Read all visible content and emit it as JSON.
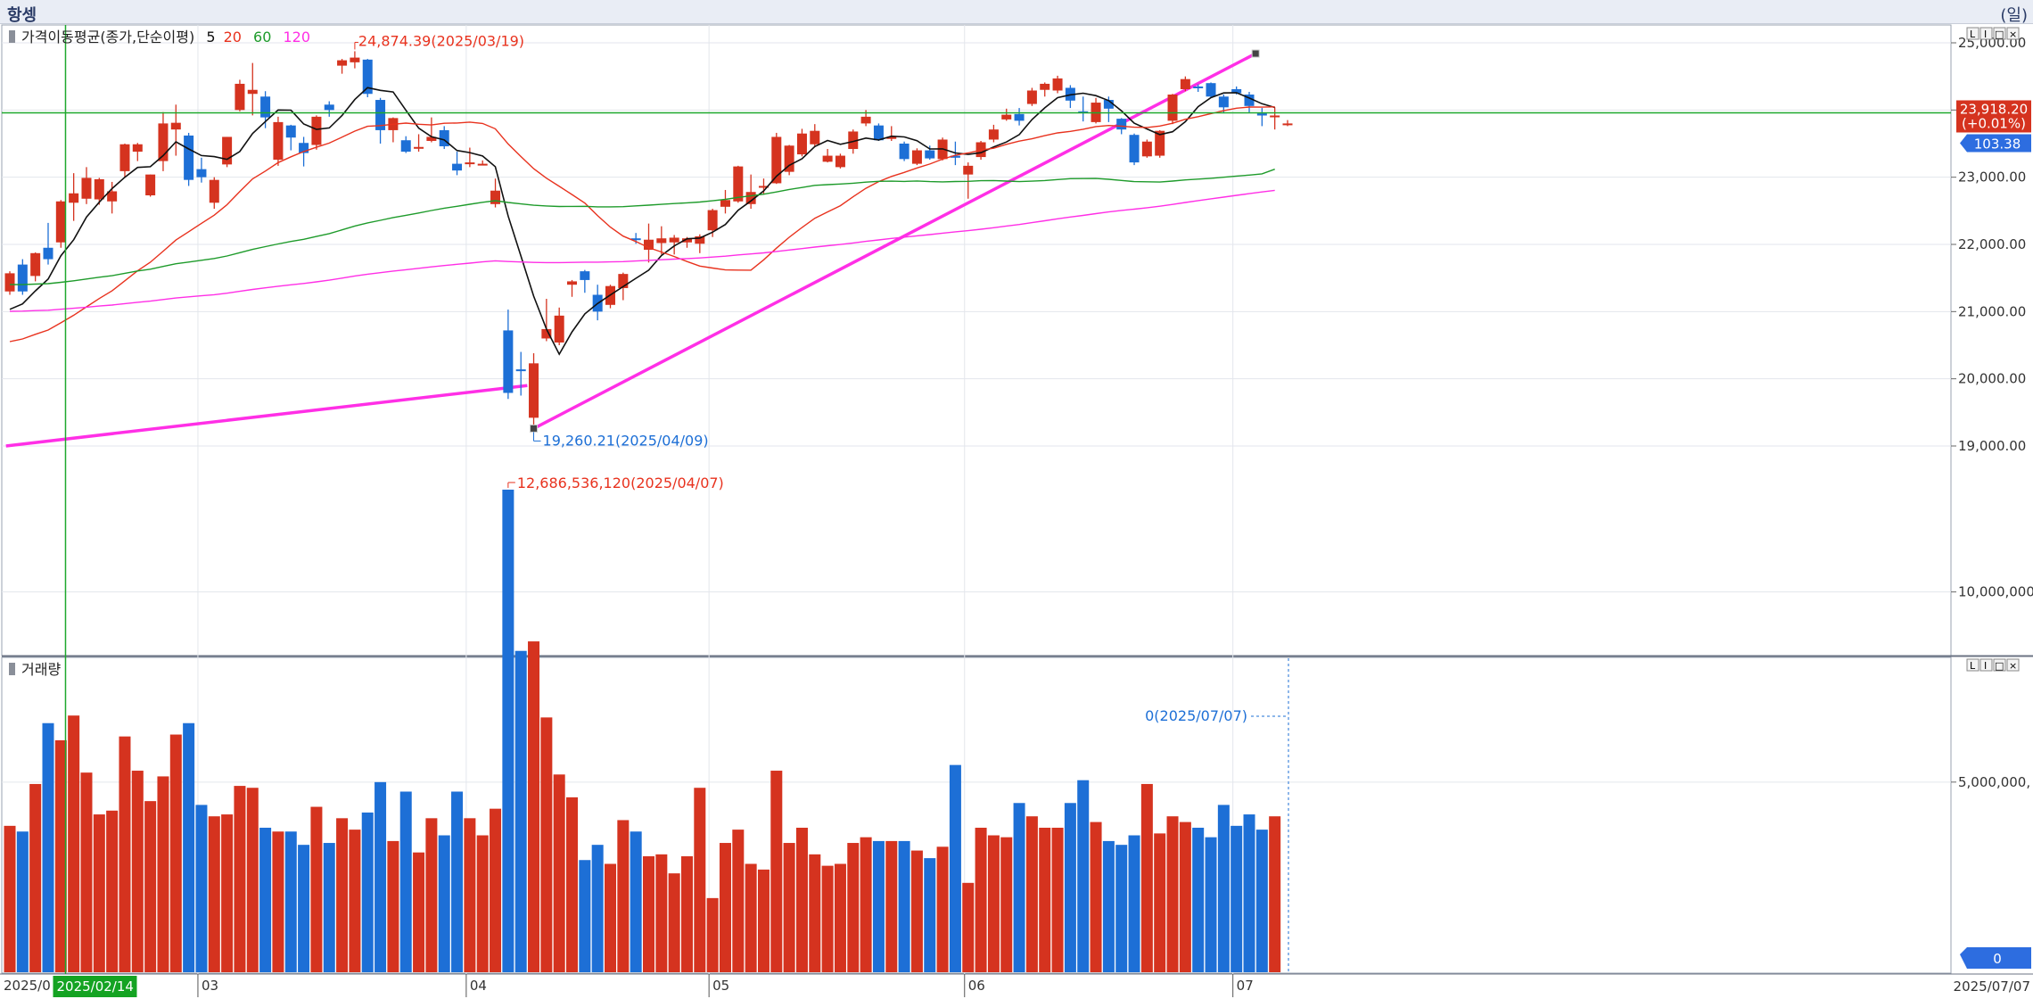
{
  "header": {
    "title": "항셍",
    "unit": "(일)"
  },
  "price_panel": {
    "legend_label": "가격이동평균(종가,단순이평)",
    "ma_periods": [
      {
        "label": "5",
        "color": "#111111"
      },
      {
        "label": "20",
        "color": "#e8321e"
      },
      {
        "label": "60",
        "color": "#1e9b2b"
      },
      {
        "label": "120",
        "color": "#ff2fe6"
      }
    ],
    "current_price_label": "23,918.20",
    "current_change_label": "(+0.01%)",
    "change_badge_label": "103.38",
    "high_annotation": "24,874.39(2025/03/19)",
    "low_annotation": "19,260.21(2025/04/09)",
    "panel_buttons": [
      "L",
      "I",
      "□",
      "×"
    ]
  },
  "volume_panel": {
    "legend_label": "거래량",
    "peak_annotation": "12,686,536,120(2025/04/07)",
    "last_annotation": "0(2025/07/07)",
    "last_badge_label": "0",
    "panel_buttons": [
      "L",
      "I",
      "□",
      "×"
    ]
  },
  "x_axis": {
    "start_label": "2025/0",
    "crosshair_label": "2025/02/14",
    "end_label": "2025/07/07",
    "month_ticks": [
      {
        "label": "03",
        "index": 15
      },
      {
        "label": "04",
        "index": 36
      },
      {
        "label": "05",
        "index": 55
      },
      {
        "label": "06",
        "index": 75
      },
      {
        "label": "07",
        "index": 96
      }
    ]
  },
  "chart_data": {
    "type": "candlestick",
    "price_axis": {
      "min": 19000,
      "max": 25000,
      "ticks": [
        "19,000.00",
        "20,000.00",
        "21,000.00",
        "22,000.00",
        "23,000.00",
        "24,000.00",
        "25,000.00"
      ],
      "tick_values": [
        19000,
        20000,
        21000,
        22000,
        23000,
        24000,
        25000
      ]
    },
    "volume_axis": {
      "min": 0,
      "max": 12900000000,
      "ticks": [
        "5,000,000,",
        "10,000,000,"
      ],
      "tick_values": [
        5000000000,
        10000000000
      ]
    },
    "candles": [
      {
        "o": 21300,
        "c": 21570,
        "h": 21600,
        "l": 21250,
        "v": 3.85
      },
      {
        "o": 21700,
        "c": 21300,
        "h": 21780,
        "l": 21250,
        "v": 3.7
      },
      {
        "o": 21530,
        "c": 21870,
        "h": 21880,
        "l": 21450,
        "v": 4.95
      },
      {
        "o": 21950,
        "c": 21780,
        "h": 22320,
        "l": 21700,
        "v": 6.55
      },
      {
        "o": 22030,
        "c": 22640,
        "h": 22660,
        "l": 21950,
        "v": 6.1
      },
      {
        "o": 22620,
        "c": 22760,
        "h": 23060,
        "l": 22350,
        "v": 6.75
      },
      {
        "o": 22680,
        "c": 22990,
        "h": 23150,
        "l": 22600,
        "v": 5.25
      },
      {
        "o": 22670,
        "c": 22970,
        "h": 22990,
        "l": 22590,
        "v": 4.15
      },
      {
        "o": 22640,
        "c": 22790,
        "h": 22930,
        "l": 22460,
        "v": 4.25
      },
      {
        "o": 23090,
        "c": 23490,
        "h": 23500,
        "l": 22990,
        "v": 6.2
      },
      {
        "o": 23380,
        "c": 23490,
        "h": 23510,
        "l": 23240,
        "v": 5.3
      },
      {
        "o": 22730,
        "c": 23040,
        "h": 23040,
        "l": 22710,
        "v": 4.5
      },
      {
        "o": 23240,
        "c": 23800,
        "h": 23970,
        "l": 23090,
        "v": 5.15
      },
      {
        "o": 23710,
        "c": 23810,
        "h": 24080,
        "l": 23320,
        "v": 6.25
      },
      {
        "o": 23620,
        "c": 22960,
        "h": 23660,
        "l": 22870,
        "v": 6.55
      },
      {
        "o": 23120,
        "c": 23000,
        "h": 23290,
        "l": 22920,
        "v": 4.4
      },
      {
        "o": 22620,
        "c": 22960,
        "h": 23000,
        "l": 22530,
        "v": 4.1
      },
      {
        "o": 23190,
        "c": 23600,
        "h": 23600,
        "l": 23150,
        "v": 4.15
      },
      {
        "o": 24000,
        "c": 24390,
        "h": 24450,
        "l": 23980,
        "v": 4.9
      },
      {
        "o": 24240,
        "c": 24300,
        "h": 24700,
        "l": 23920,
        "v": 4.85
      },
      {
        "o": 24200,
        "c": 23890,
        "h": 24280,
        "l": 23730,
        "v": 3.8
      },
      {
        "o": 23260,
        "c": 23820,
        "h": 23900,
        "l": 23170,
        "v": 3.7
      },
      {
        "o": 23770,
        "c": 23590,
        "h": 23780,
        "l": 23400,
        "v": 3.7
      },
      {
        "o": 23510,
        "c": 23360,
        "h": 23600,
        "l": 23160,
        "v": 3.35
      },
      {
        "o": 23480,
        "c": 23900,
        "h": 23920,
        "l": 23410,
        "v": 4.35
      },
      {
        "o": 24080,
        "c": 24000,
        "h": 24130,
        "l": 23900,
        "v": 3.4
      },
      {
        "o": 24660,
        "c": 24740,
        "h": 24760,
        "l": 24540,
        "v": 4.05
      },
      {
        "o": 24710,
        "c": 24780,
        "h": 24874.39,
        "l": 24620,
        "v": 3.75
      },
      {
        "o": 24750,
        "c": 24240,
        "h": 24760,
        "l": 24190,
        "v": 4.2
      },
      {
        "o": 24150,
        "c": 23700,
        "h": 24180,
        "l": 23500,
        "v": 5.0
      },
      {
        "o": 23700,
        "c": 23880,
        "h": 23890,
        "l": 23520,
        "v": 3.45
      },
      {
        "o": 23550,
        "c": 23380,
        "h": 23610,
        "l": 23360,
        "v": 4.75
      },
      {
        "o": 23440,
        "c": 23450,
        "h": 23640,
        "l": 23380,
        "v": 3.15
      },
      {
        "o": 23540,
        "c": 23600,
        "h": 23890,
        "l": 23520,
        "v": 4.05
      },
      {
        "o": 23700,
        "c": 23460,
        "h": 23760,
        "l": 23420,
        "v": 3.6
      },
      {
        "o": 23200,
        "c": 23100,
        "h": 23380,
        "l": 23030,
        "v": 4.75
      },
      {
        "o": 23210,
        "c": 23220,
        "h": 23440,
        "l": 23150,
        "v": 4.05
      },
      {
        "o": 23190,
        "c": 23200,
        "h": 23250,
        "l": 23180,
        "v": 3.6
      },
      {
        "o": 22600,
        "c": 22800,
        "h": 22980,
        "l": 22550,
        "v": 4.3
      },
      {
        "o": 20720,
        "c": 19790,
        "h": 21030,
        "l": 19700,
        "v": 12.69
      },
      {
        "o": 20140,
        "c": 20130,
        "h": 20400,
        "l": 19750,
        "v": 8.45
      },
      {
        "o": 19420,
        "c": 20230,
        "h": 20380,
        "l": 19260.21,
        "v": 8.7
      },
      {
        "o": 20600,
        "c": 20740,
        "h": 21190,
        "l": 20560,
        "v": 6.7
      },
      {
        "o": 20540,
        "c": 20940,
        "h": 21060,
        "l": 20500,
        "v": 5.2
      },
      {
        "o": 21400,
        "c": 21450,
        "h": 21470,
        "l": 21220,
        "v": 4.6
      },
      {
        "o": 21600,
        "c": 21470,
        "h": 21620,
        "l": 21280,
        "v": 2.95
      },
      {
        "o": 21250,
        "c": 21000,
        "h": 21400,
        "l": 20870,
        "v": 3.35
      },
      {
        "o": 21100,
        "c": 21380,
        "h": 21400,
        "l": 21050,
        "v": 2.85
      },
      {
        "o": 21350,
        "c": 21560,
        "h": 21580,
        "l": 21170,
        "v": 4.0
      },
      {
        "o": 22090,
        "c": 22070,
        "h": 22170,
        "l": 22010,
        "v": 3.7
      },
      {
        "o": 21920,
        "c": 22070,
        "h": 22310,
        "l": 21730,
        "v": 3.05
      },
      {
        "o": 22020,
        "c": 22090,
        "h": 22270,
        "l": 21850,
        "v": 3.1
      },
      {
        "o": 22030,
        "c": 22100,
        "h": 22140,
        "l": 21850,
        "v": 2.6
      },
      {
        "o": 22030,
        "c": 22090,
        "h": 22110,
        "l": 21950,
        "v": 3.05
      },
      {
        "o": 22010,
        "c": 22120,
        "h": 22150,
        "l": 21870,
        "v": 4.85
      },
      {
        "o": 22210,
        "c": 22510,
        "h": 22530,
        "l": 22110,
        "v": 1.95
      },
      {
        "o": 22560,
        "c": 22660,
        "h": 22810,
        "l": 22460,
        "v": 3.4
      },
      {
        "o": 22640,
        "c": 23160,
        "h": 23170,
        "l": 22620,
        "v": 3.75
      },
      {
        "o": 22600,
        "c": 22780,
        "h": 23040,
        "l": 22530,
        "v": 2.85
      },
      {
        "o": 22850,
        "c": 22870,
        "h": 22980,
        "l": 22740,
        "v": 2.7
      },
      {
        "o": 22910,
        "c": 23600,
        "h": 23660,
        "l": 22900,
        "v": 5.3
      },
      {
        "o": 23080,
        "c": 23470,
        "h": 23480,
        "l": 23030,
        "v": 3.4
      },
      {
        "o": 23340,
        "c": 23650,
        "h": 23720,
        "l": 23310,
        "v": 3.8
      },
      {
        "o": 23490,
        "c": 23690,
        "h": 23790,
        "l": 23450,
        "v": 3.1
      },
      {
        "o": 23230,
        "c": 23320,
        "h": 23420,
        "l": 23220,
        "v": 2.8
      },
      {
        "o": 23150,
        "c": 23320,
        "h": 23350,
        "l": 23130,
        "v": 2.85
      },
      {
        "o": 23420,
        "c": 23680,
        "h": 23710,
        "l": 23350,
        "v": 3.4
      },
      {
        "o": 23800,
        "c": 23900,
        "h": 24000,
        "l": 23760,
        "v": 3.55
      },
      {
        "o": 23770,
        "c": 23550,
        "h": 23800,
        "l": 23540,
        "v": 3.45
      },
      {
        "o": 23570,
        "c": 23600,
        "h": 23760,
        "l": 23540,
        "v": 3.45
      },
      {
        "o": 23500,
        "c": 23270,
        "h": 23530,
        "l": 23240,
        "v": 3.45
      },
      {
        "o": 23200,
        "c": 23400,
        "h": 23430,
        "l": 23180,
        "v": 3.2
      },
      {
        "o": 23400,
        "c": 23280,
        "h": 23470,
        "l": 23260,
        "v": 3.0
      },
      {
        "o": 23270,
        "c": 23560,
        "h": 23590,
        "l": 23250,
        "v": 3.3
      },
      {
        "o": 23320,
        "c": 23290,
        "h": 23530,
        "l": 23180,
        "v": 5.45
      },
      {
        "o": 23040,
        "c": 23170,
        "h": 23220,
        "l": 22680,
        "v": 2.35
      },
      {
        "o": 23300,
        "c": 23520,
        "h": 23540,
        "l": 23260,
        "v": 3.8
      },
      {
        "o": 23560,
        "c": 23710,
        "h": 23780,
        "l": 23520,
        "v": 3.6
      },
      {
        "o": 23860,
        "c": 23930,
        "h": 24020,
        "l": 23840,
        "v": 3.55
      },
      {
        "o": 23940,
        "c": 23840,
        "h": 24030,
        "l": 23770,
        "v": 4.45
      },
      {
        "o": 24090,
        "c": 24290,
        "h": 24330,
        "l": 24060,
        "v": 4.1
      },
      {
        "o": 24300,
        "c": 24390,
        "h": 24410,
        "l": 24200,
        "v": 3.8
      },
      {
        "o": 24290,
        "c": 24470,
        "h": 24510,
        "l": 24250,
        "v": 3.8
      },
      {
        "o": 24330,
        "c": 24140,
        "h": 24370,
        "l": 24030,
        "v": 4.45
      },
      {
        "o": 23980,
        "c": 23960,
        "h": 24200,
        "l": 23830,
        "v": 5.05
      },
      {
        "o": 23820,
        "c": 24110,
        "h": 24180,
        "l": 23800,
        "v": 3.95
      },
      {
        "o": 24150,
        "c": 24020,
        "h": 24200,
        "l": 23820,
        "v": 3.45
      },
      {
        "o": 23870,
        "c": 23710,
        "h": 23880,
        "l": 23640,
        "v": 3.35
      },
      {
        "o": 23630,
        "c": 23220,
        "h": 23650,
        "l": 23180,
        "v": 3.6
      },
      {
        "o": 23310,
        "c": 23530,
        "h": 23560,
        "l": 23290,
        "v": 4.95
      },
      {
        "o": 23320,
        "c": 23690,
        "h": 23700,
        "l": 23290,
        "v": 3.65
      },
      {
        "o": 23840,
        "c": 24230,
        "h": 24240,
        "l": 23790,
        "v": 4.1
      },
      {
        "o": 24310,
        "c": 24460,
        "h": 24500,
        "l": 24280,
        "v": 3.95
      },
      {
        "o": 24350,
        "c": 24340,
        "h": 24380,
        "l": 24270,
        "v": 3.8
      },
      {
        "o": 24400,
        "c": 24200,
        "h": 24410,
        "l": 24190,
        "v": 3.55
      },
      {
        "o": 24200,
        "c": 24040,
        "h": 24230,
        "l": 23950,
        "v": 4.4
      },
      {
        "o": 24310,
        "c": 24250,
        "h": 24350,
        "l": 24230,
        "v": 3.85
      },
      {
        "o": 24230,
        "c": 24060,
        "h": 24270,
        "l": 23960,
        "v": 4.15
      },
      {
        "o": 23950,
        "c": 23918.2,
        "h": 24030,
        "l": 23760,
        "v": 3.75
      },
      {
        "o": 23918.2,
        "c": 23918.2,
        "h": 24040,
        "l": 23710,
        "v": 4.1
      },
      {
        "o": 23800,
        "c": 23800,
        "h": 23850,
        "l": 23760,
        "v": 0
      }
    ],
    "volume_unit_note": "v values in billions",
    "trendlines": [
      {
        "from": {
          "index": -0.3,
          "price": 19000
        },
        "to": {
          "index": 40.5,
          "price": 19900
        }
      },
      {
        "from": {
          "index": 41,
          "price": 19260.21
        },
        "to": {
          "index": 97.5,
          "price": 24840
        }
      }
    ],
    "horizontal_line_price": 23918.2,
    "crosshair_index": 4.5
  }
}
